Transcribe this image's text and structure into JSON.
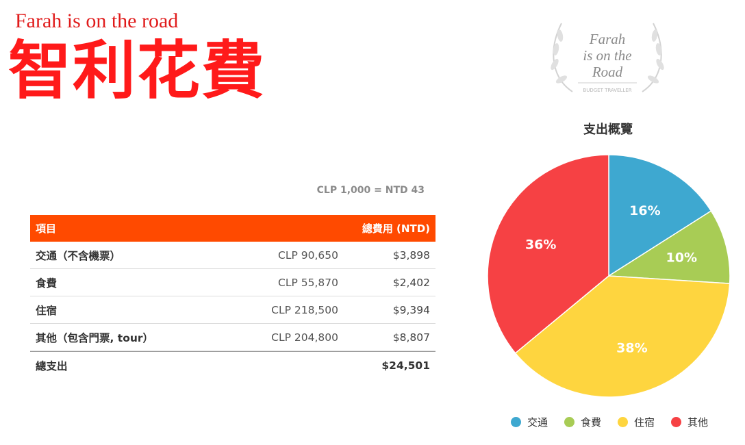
{
  "header": {
    "subtitle": "Farah is on the road",
    "title": "智利花費"
  },
  "logo": {
    "line1": "Farah",
    "line2": "is on the",
    "line3": "Road",
    "tagline": "BUDGET TRAVELLER",
    "icon": "laurel-wreath-icon"
  },
  "exchange_rate": "CLP 1,000 = NTD 43",
  "table": {
    "headers": {
      "item": "項目",
      "amount_clp": "",
      "amount_ntd": "總費用 (NTD)"
    },
    "header_color": "#ff4a00",
    "rows": [
      {
        "item": "交通（不含機票）",
        "clp": "CLP 90,650",
        "ntd": "$3,898"
      },
      {
        "item": "食費",
        "clp": "CLP 55,870",
        "ntd": "$2,402"
      },
      {
        "item": "住宿",
        "clp": "CLP 218,500",
        "ntd": "$9,394"
      },
      {
        "item": "其他（包含門票, tour）",
        "clp": "CLP 204,800",
        "ntd": "$8,807"
      }
    ],
    "total": {
      "label": "總支出",
      "clp": "",
      "ntd": "$24,501"
    }
  },
  "chart_data": {
    "type": "pie",
    "title": "支出概覽",
    "categories": [
      "交通",
      "食費",
      "住宿",
      "其他"
    ],
    "values": [
      16,
      10,
      38,
      36
    ],
    "labels": [
      "16%",
      "10%",
      "38%",
      "36%"
    ],
    "colors": [
      "#3ea8d0",
      "#a8cc55",
      "#fed53f",
      "#f64144"
    ],
    "legend_position": "bottom"
  }
}
